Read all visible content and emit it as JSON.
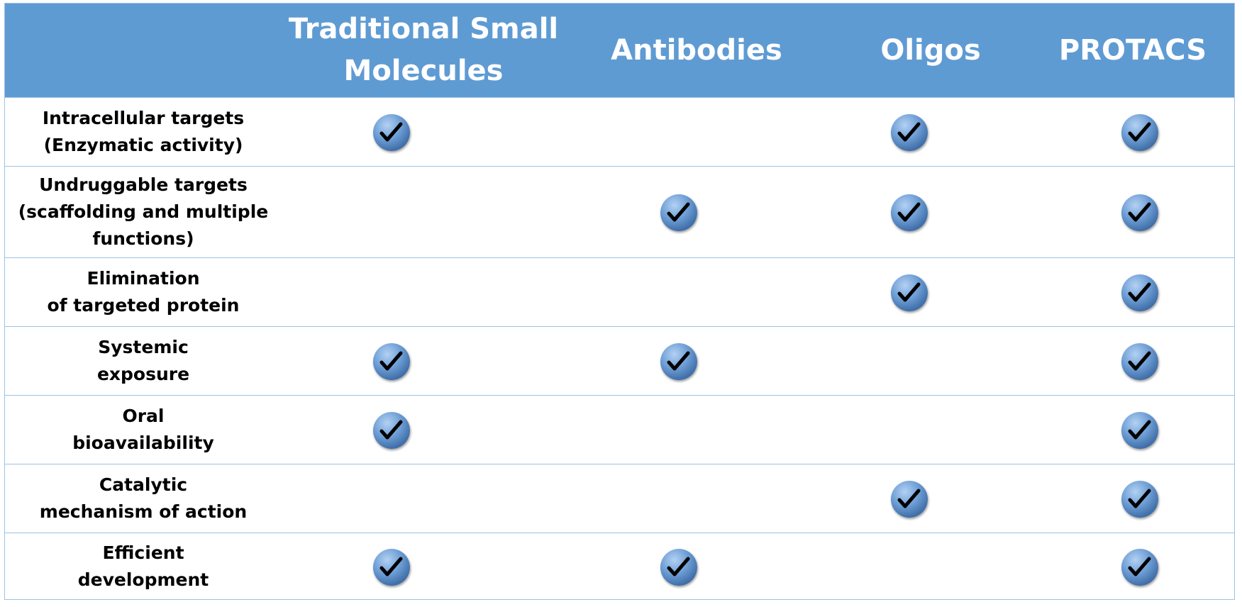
{
  "columns": [
    "",
    "Traditional Small\nMolecules",
    "Antibodies",
    "Oligos",
    "PROTACS"
  ],
  "rows": [
    {
      "label": "Intracellular targets\n(Enzymatic activity)",
      "checks": [
        true,
        false,
        true,
        true
      ]
    },
    {
      "label": "Undruggable targets\n(scaffolding and multiple\nfunctions)",
      "checks": [
        false,
        true,
        true,
        true
      ]
    },
    {
      "label": "Elimination\nof targeted protein",
      "checks": [
        false,
        false,
        true,
        true
      ]
    },
    {
      "label": "Systemic\nexposure",
      "checks": [
        true,
        true,
        false,
        true
      ]
    },
    {
      "label": "Oral\nbioavailability",
      "checks": [
        true,
        false,
        false,
        true
      ]
    },
    {
      "label": "Catalytic\nmechanism of action",
      "checks": [
        false,
        false,
        true,
        true
      ]
    },
    {
      "label": "Efficient\ndevelopment",
      "checks": [
        true,
        true,
        false,
        true
      ]
    }
  ],
  "icon": "checkmark-icon",
  "colors": {
    "header": "#5f9bd3",
    "border": "#9cc3e6",
    "check": "#4f81bd"
  }
}
